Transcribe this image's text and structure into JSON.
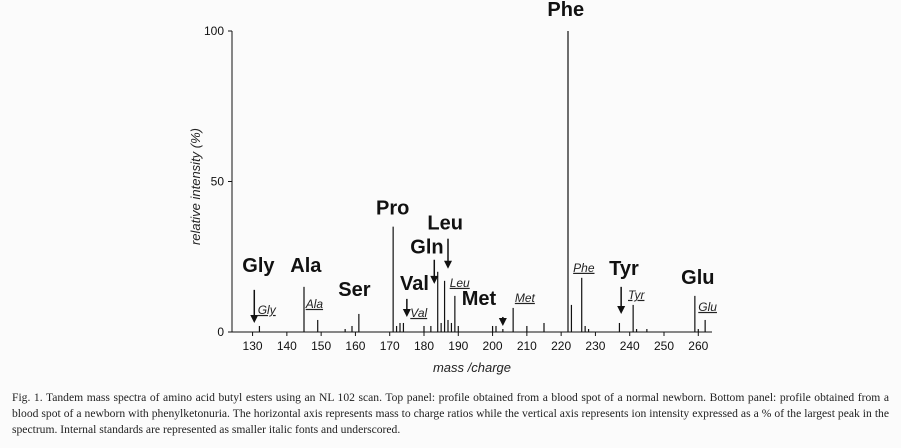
{
  "chart_data": {
    "type": "bar",
    "xlabel": "mass /charge",
    "ylabel": "relative intensity (%)",
    "xlim": [
      124,
      264
    ],
    "ylim": [
      0,
      100
    ],
    "xticks": [
      130,
      140,
      150,
      160,
      170,
      180,
      190,
      200,
      210,
      220,
      230,
      240,
      250,
      260
    ],
    "yticks": [
      0,
      50,
      100
    ],
    "peaks": [
      {
        "x": 132,
        "y": 2
      },
      {
        "x": 145,
        "y": 15
      },
      {
        "x": 149,
        "y": 4
      },
      {
        "x": 157,
        "y": 1
      },
      {
        "x": 159,
        "y": 2
      },
      {
        "x": 161,
        "y": 6
      },
      {
        "x": 171,
        "y": 35
      },
      {
        "x": 172,
        "y": 2
      },
      {
        "x": 173,
        "y": 3
      },
      {
        "x": 174,
        "y": 3
      },
      {
        "x": 180,
        "y": 2
      },
      {
        "x": 182,
        "y": 2
      },
      {
        "x": 184,
        "y": 20
      },
      {
        "x": 185,
        "y": 3
      },
      {
        "x": 186,
        "y": 17
      },
      {
        "x": 187,
        "y": 4
      },
      {
        "x": 188,
        "y": 3
      },
      {
        "x": 189,
        "y": 12
      },
      {
        "x": 190,
        "y": 2
      },
      {
        "x": 200,
        "y": 2
      },
      {
        "x": 201,
        "y": 2
      },
      {
        "x": 203,
        "y": 1
      },
      {
        "x": 206,
        "y": 8
      },
      {
        "x": 210,
        "y": 2
      },
      {
        "x": 215,
        "y": 3
      },
      {
        "x": 222,
        "y": 100
      },
      {
        "x": 223,
        "y": 9
      },
      {
        "x": 226,
        "y": 18
      },
      {
        "x": 227,
        "y": 2
      },
      {
        "x": 228,
        "y": 1
      },
      {
        "x": 237,
        "y": 3
      },
      {
        "x": 241,
        "y": 9
      },
      {
        "x": 242,
        "y": 1
      },
      {
        "x": 245,
        "y": 1
      },
      {
        "x": 259,
        "y": 12
      },
      {
        "x": 260,
        "y": 1
      },
      {
        "x": 262,
        "y": 4
      }
    ],
    "annotations": [
      {
        "text": "Gly",
        "kind": "amino",
        "x": 127,
        "y": 20,
        "arrow_x": 130.5,
        "arrow_from": 14,
        "arrow_to": 3
      },
      {
        "text": "Ala",
        "kind": "amino",
        "x": 141,
        "y": 20
      },
      {
        "text": "Ser",
        "kind": "amino",
        "x": 155,
        "y": 12
      },
      {
        "text": "Pro",
        "kind": "amino",
        "x": 166,
        "y": 39
      },
      {
        "text": "Gln",
        "kind": "amino",
        "x": 176,
        "y": 26,
        "arrow_x": 183,
        "arrow_from": 24,
        "arrow_to": 16
      },
      {
        "text": "Leu",
        "kind": "amino",
        "x": 181,
        "y": 34,
        "arrow_x": 187,
        "arrow_from": 31,
        "arrow_to": 21
      },
      {
        "text": "Val",
        "kind": "amino",
        "x": 173,
        "y": 14,
        "arrow_x": 175,
        "arrow_from": 11,
        "arrow_to": 5
      },
      {
        "text": "Met",
        "kind": "amino",
        "x": 191,
        "y": 9,
        "arrow_x": 203,
        "arrow_from": 5,
        "arrow_to": 2
      },
      {
        "text": "Tyr",
        "kind": "amino",
        "x": 234,
        "y": 19,
        "arrow_x": 237.5,
        "arrow_from": 15,
        "arrow_to": 6
      },
      {
        "text": "Glu",
        "kind": "amino",
        "x": 255,
        "y": 16
      },
      {
        "text": "Phe",
        "kind": "amino",
        "x": 216,
        "y": 105
      },
      {
        "text": "Gly",
        "kind": "std",
        "x": 131.5,
        "y": 6
      },
      {
        "text": "Ala",
        "kind": "std",
        "x": 145.5,
        "y": 8
      },
      {
        "text": "Val",
        "kind": "std",
        "x": 176,
        "y": 5
      },
      {
        "text": "Leu",
        "kind": "std",
        "x": 187.5,
        "y": 15
      },
      {
        "text": "Met",
        "kind": "std",
        "x": 206.5,
        "y": 10
      },
      {
        "text": "Phe",
        "kind": "std",
        "x": 223.5,
        "y": 20
      },
      {
        "text": "Tyr",
        "kind": "std",
        "x": 239.5,
        "y": 11
      },
      {
        "text": "Glu",
        "kind": "std",
        "x": 260,
        "y": 7
      }
    ]
  },
  "caption": "Fig. 1. Tandem mass spectra of amino acid butyl esters using an NL 102 scan. Top panel: profile obtained from a blood spot of a normal newborn. Bottom panel: profile obtained from a blood spot of a newborn with phenylketonuria. The horizontal axis represents mass to charge ratios while the vertical axis represents ion intensity expressed as a % of the largest peak in the spectrum. Internal standards are represented as smaller italic fonts and underscored."
}
